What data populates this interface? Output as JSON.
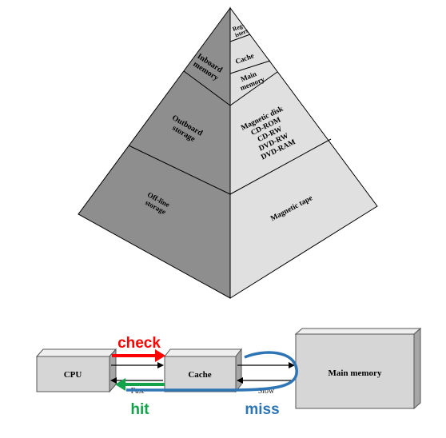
{
  "pyramid": {
    "left_labels": {
      "inboard": [
        "Inboard",
        "memory"
      ],
      "outboard": [
        "Outboard",
        "storage"
      ],
      "offline": [
        "Off-line",
        "storage"
      ]
    },
    "right_labels": {
      "registers": [
        "Reg-",
        "isters"
      ],
      "cache": "Cache",
      "main_memory": [
        "Main",
        "memory"
      ],
      "outboard_items": [
        "Magnetic disk",
        "CD-ROM",
        "CD-RW",
        "DVD-RW",
        "DVD-RAM"
      ],
      "magnetic_tape": "Magnetic tape"
    }
  },
  "flow": {
    "cpu": "CPU",
    "cache": "Cache",
    "main_memory": "Main memory",
    "fast": "Fast",
    "slow": "Slow",
    "check": "check",
    "hit": "hit",
    "miss": "miss"
  },
  "colors": {
    "pyramid_left_face": "#8e8e8e",
    "pyramid_right_face": "#e0e0e0",
    "box_face": "#d6d6d6",
    "box_side": "#a6a6a6",
    "check": "#ff0000",
    "hit": "#12a34a",
    "miss": "#2e75b6"
  }
}
